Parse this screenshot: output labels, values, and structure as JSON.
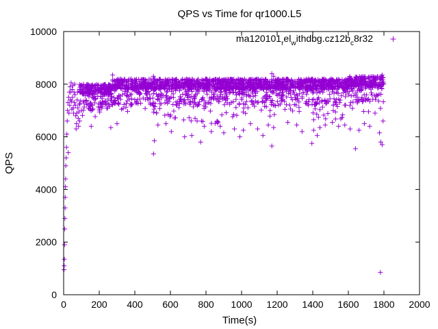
{
  "chart_data": {
    "type": "scatter",
    "title": "QPS vs Time for qr1000.L5",
    "xlabel": "Time(s)",
    "ylabel": "QPS",
    "xlim": [
      0,
      2000
    ],
    "ylim": [
      0,
      10000
    ],
    "xticks": [
      0,
      200,
      400,
      600,
      800,
      1000,
      1200,
      1400,
      1600,
      1800,
      2000
    ],
    "yticks": [
      0,
      2000,
      4000,
      6000,
      8000,
      10000
    ],
    "xtick_labels": [
      "0",
      "200",
      "400",
      "600",
      "800",
      "1000",
      "1200",
      "1400",
      "1600",
      "1800",
      "2000"
    ],
    "ytick_labels": [
      "0",
      "2000",
      "4000",
      "6000",
      "8000",
      "10000"
    ],
    "grid": false,
    "legend": {
      "placement": "top-right",
      "parts": [
        "ma120101",
        "r",
        "el",
        "w",
        "ithdbg.cz12b",
        "c",
        "8r32"
      ]
    },
    "marker": "+",
    "color": "#9400d3",
    "series": [
      {
        "points": [
          [
            2,
            950
          ],
          [
            3,
            1100
          ],
          [
            4,
            1350
          ],
          [
            5,
            1900
          ],
          [
            6,
            2500
          ],
          [
            7,
            2900
          ],
          [
            8,
            3300
          ],
          [
            9,
            3700
          ],
          [
            10,
            4100
          ],
          [
            11,
            4400
          ],
          [
            12,
            4900
          ],
          [
            14,
            5200
          ],
          [
            16,
            5600
          ],
          [
            18,
            6100
          ],
          [
            20,
            6600
          ],
          [
            22,
            7000
          ],
          [
            24,
            7300
          ],
          [
            26,
            5400
          ],
          [
            28,
            7500
          ],
          [
            30,
            6900
          ],
          [
            32,
            7700
          ],
          [
            34,
            7200
          ],
          [
            36,
            7900
          ],
          [
            38,
            7400
          ],
          [
            40,
            7700
          ],
          [
            42,
            8050
          ],
          [
            44,
            7350
          ],
          [
            46,
            7050
          ],
          [
            48,
            7800
          ],
          [
            50,
            7500
          ],
          [
            52,
            7950
          ],
          [
            54,
            7100
          ],
          [
            56,
            6900
          ],
          [
            58,
            7700
          ],
          [
            60,
            7300
          ],
          [
            62,
            8000
          ],
          [
            64,
            7600
          ],
          [
            66,
            7200
          ],
          [
            68,
            6800
          ],
          [
            70,
            6300
          ],
          [
            72,
            6500
          ],
          [
            74,
            6900
          ],
          [
            76,
            7400
          ],
          [
            78,
            7700
          ],
          [
            80,
            7100
          ],
          [
            82,
            6700
          ],
          [
            84,
            6400
          ],
          [
            86,
            6950
          ],
          [
            88,
            7250
          ],
          [
            90,
            6600
          ],
          [
            1780,
            850
          ],
          [
            1795,
            6600
          ]
        ],
        "bands": [
          {
            "x": [
              90,
              270
            ],
            "y": [
              6700,
              8000
            ],
            "count": 260
          },
          {
            "x": [
              270,
              560
            ],
            "y": [
              6800,
              8200
            ],
            "count": 380
          },
          {
            "x": [
              560,
              760
            ],
            "y": [
              6600,
              8200
            ],
            "count": 260
          },
          {
            "x": [
              760,
              1000
            ],
            "y": [
              6500,
              8200
            ],
            "count": 340
          },
          {
            "x": [
              1000,
              1200
            ],
            "y": [
              6700,
              8200
            ],
            "count": 280
          },
          {
            "x": [
              1200,
              1400
            ],
            "y": [
              6900,
              8200
            ],
            "count": 260
          },
          {
            "x": [
              1400,
              1600
            ],
            "y": [
              6600,
              8200
            ],
            "count": 280
          },
          {
            "x": [
              1600,
              1800
            ],
            "y": [
              6900,
              8300
            ],
            "count": 260
          }
        ],
        "outliers": [
          [
            155,
            6400
          ],
          [
            265,
            6350
          ],
          [
            300,
            6500
          ],
          [
            505,
            5350
          ],
          [
            510,
            5850
          ],
          [
            530,
            6450
          ],
          [
            575,
            6500
          ],
          [
            605,
            6200
          ],
          [
            680,
            6000
          ],
          [
            720,
            6050
          ],
          [
            750,
            6600
          ],
          [
            770,
            5800
          ],
          [
            790,
            6400
          ],
          [
            830,
            6200
          ],
          [
            880,
            6400
          ],
          [
            900,
            6150
          ],
          [
            960,
            6300
          ],
          [
            990,
            6000
          ],
          [
            1010,
            6250
          ],
          [
            1050,
            6500
          ],
          [
            1090,
            6300
          ],
          [
            1120,
            6050
          ],
          [
            1150,
            6450
          ],
          [
            1170,
            5650
          ],
          [
            1180,
            6350
          ],
          [
            1260,
            6550
          ],
          [
            1310,
            6450
          ],
          [
            1340,
            6200
          ],
          [
            1395,
            5750
          ],
          [
            1405,
            6250
          ],
          [
            1425,
            6050
          ],
          [
            1440,
            6350
          ],
          [
            1470,
            6450
          ],
          [
            1510,
            6550
          ],
          [
            1545,
            6400
          ],
          [
            1580,
            6450
          ],
          [
            1610,
            6300
          ],
          [
            1640,
            5550
          ],
          [
            1660,
            6250
          ],
          [
            1690,
            6500
          ],
          [
            1720,
            6400
          ],
          [
            1750,
            6900
          ],
          [
            1775,
            6150
          ],
          [
            1782,
            5800
          ],
          [
            1790,
            5700
          ],
          [
            1170,
            8400
          ],
          [
            1180,
            8300
          ],
          [
            275,
            8350
          ],
          [
            505,
            8300
          ],
          [
            1790,
            8350
          ],
          [
            1795,
            8250
          ]
        ]
      }
    ]
  }
}
